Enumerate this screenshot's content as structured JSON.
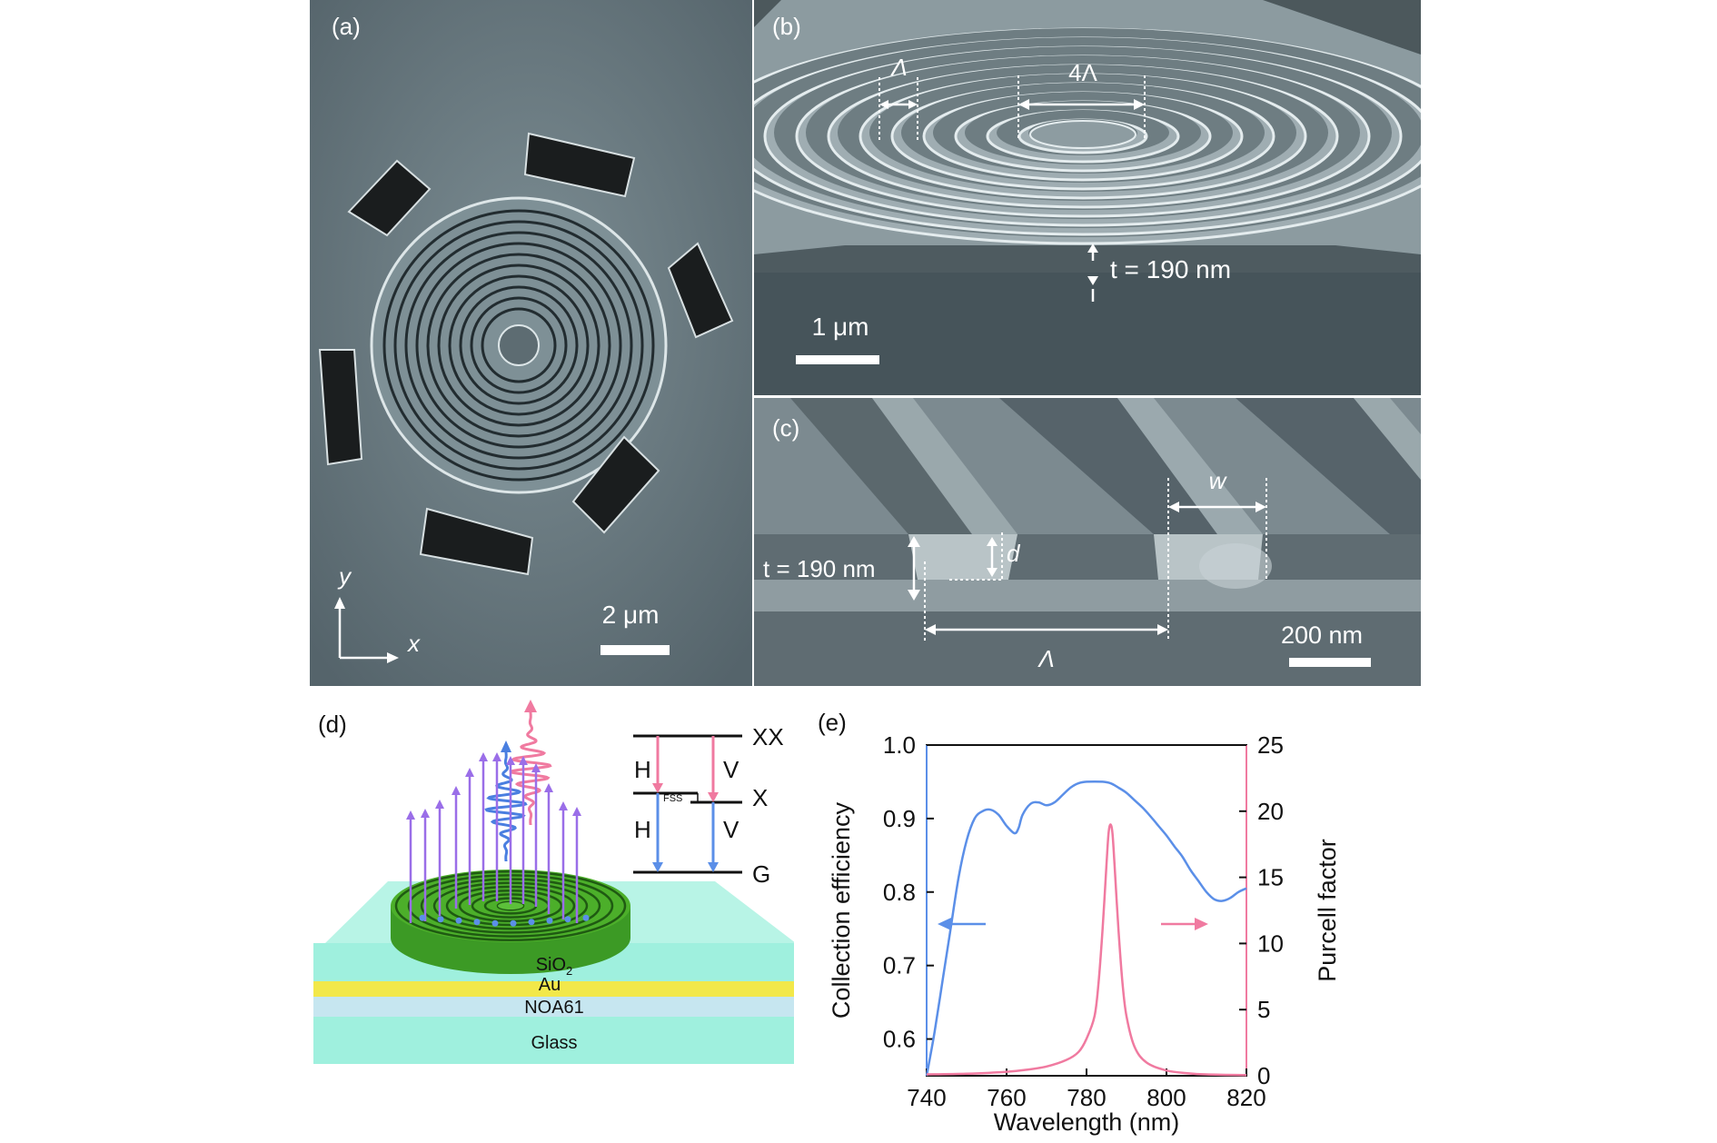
{
  "panel_a": {
    "label": "(a)",
    "scale_bar": "2 μm",
    "axis_y": "y",
    "axis_x": "x"
  },
  "panel_b": {
    "label": "(b)",
    "period": "Λ",
    "period4": "4Λ",
    "thickness": "t = 190 nm",
    "scale_bar": "1 μm"
  },
  "panel_c": {
    "label": "(c)",
    "thickness": "t = 190 nm",
    "depth": "d",
    "width": "w",
    "period": "Λ",
    "scale_bar": "200 nm"
  },
  "panel_d": {
    "label": "(d)",
    "levels": {
      "xx": "XX",
      "x": "X",
      "g": "G"
    },
    "transitions": {
      "h1": "H",
      "v1": "V",
      "h2": "H",
      "v2": "V"
    },
    "fss": "FSS",
    "layers": {
      "sio2": "SiO",
      "sio2_sub": "2",
      "au": "Au",
      "noa": "NOA61",
      "glass": "Glass"
    },
    "colors": {
      "blue": "#4a7fe0",
      "pink": "#f07aa0",
      "green": "#4caf2a",
      "cyan": "#9ff0de",
      "gold": "#f2e84a",
      "lightblue": "#c6e6f0"
    }
  },
  "panel_e": {
    "label": "(e)"
  },
  "chart_data": {
    "type": "line",
    "xlabel": "Wavelength (nm)",
    "ylabel": "Collection efficiency",
    "y2label": "Purcell factor",
    "xlim": [
      740,
      820
    ],
    "ylim": [
      0.55,
      1.0
    ],
    "y2lim": [
      0,
      25
    ],
    "xticks": [
      "740",
      "760",
      "780",
      "800",
      "820"
    ],
    "yticks": [
      "0.6",
      "0.7",
      "0.8",
      "0.9",
      "1.0"
    ],
    "y2ticks": [
      "0",
      "5",
      "10",
      "15",
      "20",
      "25"
    ],
    "grid": false,
    "series": [
      {
        "axis": "left",
        "color": "#5b8fe8",
        "x": [
          740,
          742,
          744,
          746,
          748,
          750,
          752,
          754,
          756,
          758,
          760,
          762,
          763,
          764,
          766,
          768,
          770,
          772,
          774,
          776,
          778,
          780,
          784,
          786,
          788,
          790,
          792,
          794,
          796,
          798,
          800,
          802,
          804,
          806,
          808,
          810,
          812,
          814,
          816,
          818,
          820
        ],
        "y": [
          0.55,
          0.61,
          0.68,
          0.75,
          0.82,
          0.87,
          0.9,
          0.91,
          0.912,
          0.905,
          0.89,
          0.88,
          0.887,
          0.905,
          0.92,
          0.922,
          0.918,
          0.922,
          0.932,
          0.942,
          0.948,
          0.95,
          0.95,
          0.948,
          0.942,
          0.935,
          0.925,
          0.915,
          0.903,
          0.89,
          0.877,
          0.862,
          0.848,
          0.83,
          0.815,
          0.8,
          0.79,
          0.788,
          0.792,
          0.8,
          0.805
        ]
      },
      {
        "axis": "right",
        "color": "#f07aa0",
        "x": [
          740,
          750,
          760,
          765,
          770,
          775,
          778,
          780,
          782,
          783,
          784,
          785,
          785.5,
          786,
          786.5,
          787,
          788,
          789,
          790,
          792,
          795,
          800,
          805,
          810,
          820
        ],
        "y": [
          0.1,
          0.15,
          0.3,
          0.45,
          0.7,
          1.2,
          1.8,
          2.8,
          4.5,
          7,
          11,
          16,
          18.3,
          19,
          18.3,
          16,
          11,
          7,
          4.5,
          2.2,
          1,
          0.4,
          0.2,
          0.1,
          0.05
        ]
      }
    ]
  }
}
